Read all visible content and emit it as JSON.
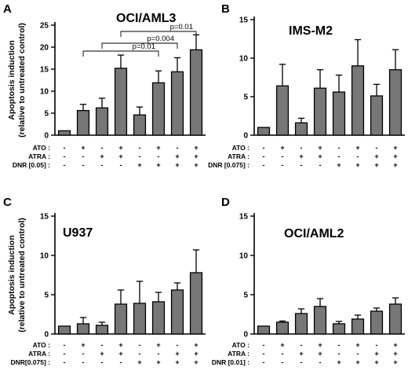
{
  "ylabel_lines": [
    "Apoptosis induction",
    "(relative to untreated control)"
  ],
  "chart_data": [
    {
      "type": "bar",
      "letter": "A",
      "title": "OCI/AML3",
      "ylim": [
        0,
        25
      ],
      "yticks": [
        0,
        5,
        10,
        15,
        20,
        25
      ],
      "values": [
        1.0,
        5.6,
        6.2,
        15.2,
        4.6,
        11.9,
        14.4,
        19.4
      ],
      "errors": [
        0.0,
        1.4,
        2.2,
        3.0,
        1.8,
        2.7,
        3.2,
        3.4
      ],
      "conditions": [
        {
          "label": "ATO :",
          "signs": [
            "-",
            "+",
            "-",
            "+",
            "-",
            "+",
            "-",
            "+"
          ]
        },
        {
          "label": "ATRA :",
          "signs": [
            "-",
            "-",
            "+",
            "+",
            "-",
            "-",
            "+",
            "+"
          ]
        },
        {
          "label": "DNR [0.05] :",
          "signs": [
            "-",
            "-",
            "-",
            "-",
            "+",
            "+",
            "+",
            "+"
          ]
        }
      ],
      "annotations": [
        {
          "text": "p=0.01",
          "from": 2,
          "to": 6
        },
        {
          "text": "p=0.004",
          "from": 3,
          "to": 7
        },
        {
          "text": "p=0.01",
          "from": 4,
          "to": 8
        }
      ]
    },
    {
      "type": "bar",
      "letter": "B",
      "title": "IMS-M2",
      "ylim": [
        0,
        15
      ],
      "yticks": [
        0,
        5,
        10,
        15
      ],
      "values": [
        1.0,
        6.4,
        1.6,
        6.1,
        5.6,
        9.0,
        5.1,
        8.5
      ],
      "errors": [
        0.0,
        2.8,
        0.6,
        2.4,
        2.2,
        3.4,
        1.5,
        2.6
      ],
      "conditions": [
        {
          "label": "ATO :",
          "signs": [
            "-",
            "+",
            "-",
            "+",
            "-",
            "+",
            "-",
            "+"
          ]
        },
        {
          "label": "ATRA :",
          "signs": [
            "-",
            "-",
            "+",
            "+",
            "-",
            "-",
            "+",
            "+"
          ]
        },
        {
          "label": "DNR [0.075] :",
          "signs": [
            "-",
            "-",
            "-",
            "-",
            "+",
            "+",
            "+",
            "+"
          ]
        }
      ],
      "annotations": []
    },
    {
      "type": "bar",
      "letter": "C",
      "title": "U937",
      "ylim": [
        0,
        15
      ],
      "yticks": [
        0,
        5,
        10,
        15
      ],
      "values": [
        1.0,
        1.3,
        1.1,
        3.8,
        3.9,
        4.1,
        5.6,
        7.8
      ],
      "errors": [
        0.0,
        0.8,
        0.4,
        1.8,
        2.8,
        1.2,
        0.9,
        2.9
      ],
      "conditions": [
        {
          "label": "ATO :",
          "signs": [
            "-",
            "+",
            "-",
            "+",
            "-",
            "+",
            "-",
            "+"
          ]
        },
        {
          "label": "ATRA :",
          "signs": [
            "-",
            "-",
            "+",
            "+",
            "-",
            "-",
            "+",
            "+"
          ]
        },
        {
          "label": "DNR[0.075] :",
          "signs": [
            "-",
            "-",
            "-",
            "-",
            "+",
            "+",
            "+",
            "+"
          ]
        }
      ],
      "annotations": []
    },
    {
      "type": "bar",
      "letter": "D",
      "title": "OCI/AML2",
      "ylim": [
        0,
        15
      ],
      "yticks": [
        0,
        5,
        10,
        15
      ],
      "values": [
        1.0,
        1.5,
        2.6,
        3.5,
        1.3,
        1.9,
        2.9,
        3.8
      ],
      "errors": [
        0.0,
        0.15,
        0.6,
        1.0,
        0.3,
        0.5,
        0.4,
        0.8
      ],
      "conditions": [
        {
          "label": "ATO :",
          "signs": [
            "-",
            "+",
            "-",
            "+",
            "-",
            "+",
            "-",
            "+"
          ]
        },
        {
          "label": "ATRA :",
          "signs": [
            "-",
            "-",
            "+",
            "+",
            "-",
            "-",
            "+",
            "+"
          ]
        },
        {
          "label": "DNR [0.01] :",
          "signs": [
            "-",
            "-",
            "-",
            "-",
            "+",
            "+",
            "+",
            "+"
          ]
        }
      ],
      "annotations": []
    }
  ]
}
